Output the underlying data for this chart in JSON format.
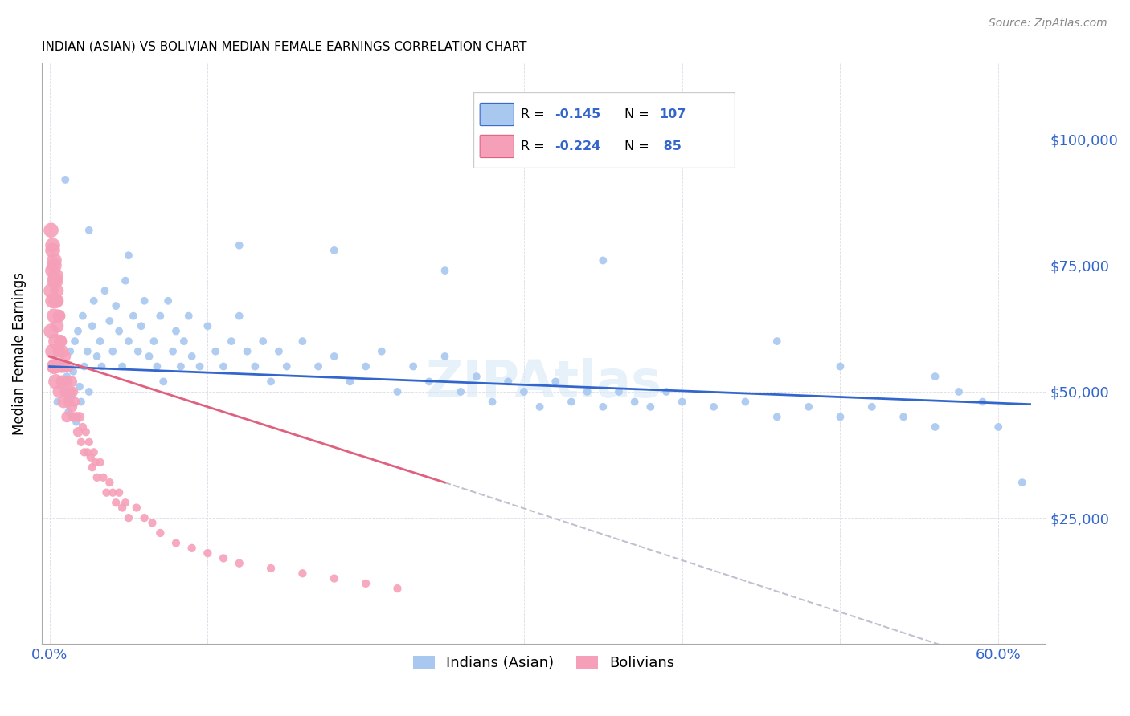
{
  "title": "INDIAN (ASIAN) VS BOLIVIAN MEDIAN FEMALE EARNINGS CORRELATION CHART",
  "source": "Source: ZipAtlas.com",
  "ylabel": "Median Female Earnings",
  "y_tick_labels": [
    "$25,000",
    "$50,000",
    "$75,000",
    "$100,000"
  ],
  "y_tick_values": [
    25000,
    50000,
    75000,
    100000
  ],
  "xlim": [
    -0.005,
    0.63
  ],
  "ylim": [
    0,
    115000
  ],
  "legend_label_1": "Indians (Asian)",
  "legend_label_2": "Bolivians",
  "legend_r1_val": "-0.145",
  "legend_n1_val": "107",
  "legend_r2_val": "-0.224",
  "legend_n2_val": " 85",
  "color_indian": "#A8C8F0",
  "color_bolivian": "#F5A0B8",
  "color_blue": "#3366CC",
  "color_pink": "#E06080",
  "color_dashed": "#C0C0D0",
  "background_color": "#FFFFFF",
  "grid_color": "#DCDCE8",
  "indian_x": [
    0.003,
    0.005,
    0.007,
    0.008,
    0.01,
    0.011,
    0.012,
    0.013,
    0.014,
    0.015,
    0.016,
    0.017,
    0.018,
    0.019,
    0.02,
    0.021,
    0.022,
    0.024,
    0.025,
    0.027,
    0.028,
    0.03,
    0.032,
    0.033,
    0.035,
    0.038,
    0.04,
    0.042,
    0.044,
    0.046,
    0.048,
    0.05,
    0.053,
    0.056,
    0.058,
    0.06,
    0.063,
    0.066,
    0.068,
    0.07,
    0.072,
    0.075,
    0.078,
    0.08,
    0.083,
    0.085,
    0.088,
    0.09,
    0.095,
    0.1,
    0.105,
    0.11,
    0.115,
    0.12,
    0.125,
    0.13,
    0.135,
    0.14,
    0.145,
    0.15,
    0.16,
    0.17,
    0.18,
    0.19,
    0.2,
    0.21,
    0.22,
    0.23,
    0.24,
    0.25,
    0.26,
    0.27,
    0.28,
    0.29,
    0.3,
    0.31,
    0.32,
    0.33,
    0.34,
    0.35,
    0.36,
    0.37,
    0.38,
    0.39,
    0.4,
    0.42,
    0.44,
    0.46,
    0.48,
    0.5,
    0.52,
    0.54,
    0.56,
    0.575,
    0.59,
    0.6,
    0.615,
    0.46,
    0.5,
    0.56,
    0.01,
    0.025,
    0.05,
    0.12,
    0.18,
    0.25,
    0.35
  ],
  "indian_y": [
    55000,
    48000,
    52000,
    56000,
    50000,
    53000,
    46000,
    58000,
    49000,
    54000,
    60000,
    44000,
    62000,
    51000,
    48000,
    65000,
    55000,
    58000,
    50000,
    63000,
    68000,
    57000,
    60000,
    55000,
    70000,
    64000,
    58000,
    67000,
    62000,
    55000,
    72000,
    60000,
    65000,
    58000,
    63000,
    68000,
    57000,
    60000,
    55000,
    65000,
    52000,
    68000,
    58000,
    62000,
    55000,
    60000,
    65000,
    57000,
    55000,
    63000,
    58000,
    55000,
    60000,
    65000,
    58000,
    55000,
    60000,
    52000,
    58000,
    55000,
    60000,
    55000,
    57000,
    52000,
    55000,
    58000,
    50000,
    55000,
    52000,
    57000,
    50000,
    53000,
    48000,
    52000,
    50000,
    47000,
    52000,
    48000,
    50000,
    47000,
    50000,
    48000,
    47000,
    50000,
    48000,
    47000,
    48000,
    45000,
    47000,
    45000,
    47000,
    45000,
    43000,
    50000,
    48000,
    43000,
    32000,
    60000,
    55000,
    53000,
    92000,
    82000,
    77000,
    79000,
    78000,
    74000,
    76000
  ],
  "bolivian_x": [
    0.001,
    0.001,
    0.002,
    0.002,
    0.002,
    0.003,
    0.003,
    0.003,
    0.004,
    0.004,
    0.004,
    0.005,
    0.005,
    0.005,
    0.006,
    0.006,
    0.006,
    0.007,
    0.007,
    0.008,
    0.008,
    0.009,
    0.009,
    0.01,
    0.01,
    0.011,
    0.011,
    0.012,
    0.012,
    0.013,
    0.014,
    0.014,
    0.015,
    0.015,
    0.016,
    0.017,
    0.018,
    0.019,
    0.02,
    0.021,
    0.022,
    0.023,
    0.024,
    0.025,
    0.026,
    0.027,
    0.028,
    0.029,
    0.03,
    0.032,
    0.034,
    0.036,
    0.038,
    0.04,
    0.042,
    0.044,
    0.046,
    0.048,
    0.05,
    0.055,
    0.06,
    0.065,
    0.07,
    0.08,
    0.09,
    0.1,
    0.11,
    0.12,
    0.14,
    0.16,
    0.18,
    0.2,
    0.22,
    0.002,
    0.003,
    0.004,
    0.005,
    0.006,
    0.007,
    0.008,
    0.001,
    0.002,
    0.003,
    0.003,
    0.004
  ],
  "bolivian_y": [
    70000,
    62000,
    68000,
    58000,
    74000,
    65000,
    72000,
    55000,
    60000,
    68000,
    52000,
    63000,
    55000,
    70000,
    58000,
    65000,
    50000,
    60000,
    55000,
    58000,
    52000,
    55000,
    48000,
    57000,
    50000,
    52000,
    45000,
    55000,
    48000,
    50000,
    47000,
    52000,
    45000,
    50000,
    48000,
    45000,
    42000,
    45000,
    40000,
    43000,
    38000,
    42000,
    38000,
    40000,
    37000,
    35000,
    38000,
    36000,
    33000,
    36000,
    33000,
    30000,
    32000,
    30000,
    28000,
    30000,
    27000,
    28000,
    25000,
    27000,
    25000,
    24000,
    22000,
    20000,
    19000,
    18000,
    17000,
    16000,
    15000,
    14000,
    13000,
    12000,
    11000,
    78000,
    75000,
    72000,
    68000,
    65000,
    60000,
    55000,
    82000,
    79000,
    76000,
    55000,
    73000
  ]
}
